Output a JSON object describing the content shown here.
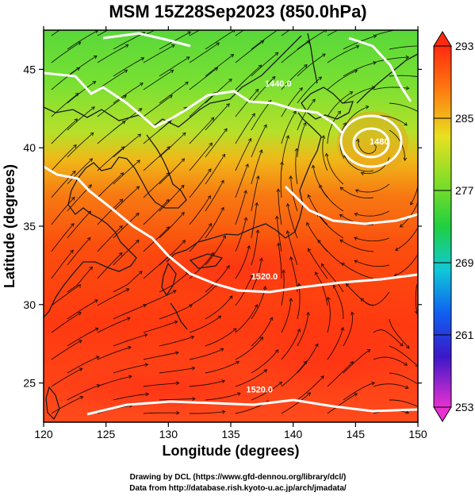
{
  "title": "MSM 15Z28Sep2023 (850.0hPa)",
  "axes": {
    "xlabel": "Longitude (degrees)",
    "ylabel": "Latitude  (degrees)",
    "xlim": [
      120,
      150
    ],
    "ylim": [
      22.5,
      47.5
    ],
    "xticks": [
      120,
      125,
      130,
      135,
      140,
      145,
      150
    ],
    "yticks": [
      25,
      30,
      35,
      40,
      45
    ]
  },
  "colorbar": {
    "min": 253,
    "max": 293,
    "labels": [
      293,
      285,
      277,
      269,
      261,
      253
    ]
  },
  "contours": [
    {
      "label": "1520.0",
      "lon": 137.3,
      "lat": 24.4
    },
    {
      "label": "1520.0",
      "lon": 137.7,
      "lat": 31.6
    },
    {
      "label": "1440.0",
      "lon": 138.8,
      "lat": 43.9
    },
    {
      "label": "1480",
      "lon": 146.9,
      "lat": 40.2
    }
  ],
  "credits": {
    "line1": "Drawing by DCL (https://www.gfd-dennou.org/library/dcl/)",
    "line2": "Data from http://database.rish.kyoto-u.ac.jp/arch/jmadata/"
  },
  "colors": {
    "frame": "#000000",
    "contour": "#ffffff",
    "coast": "#1a1a1a",
    "cold": "#46d43a",
    "warm": "#ff3a10"
  }
}
